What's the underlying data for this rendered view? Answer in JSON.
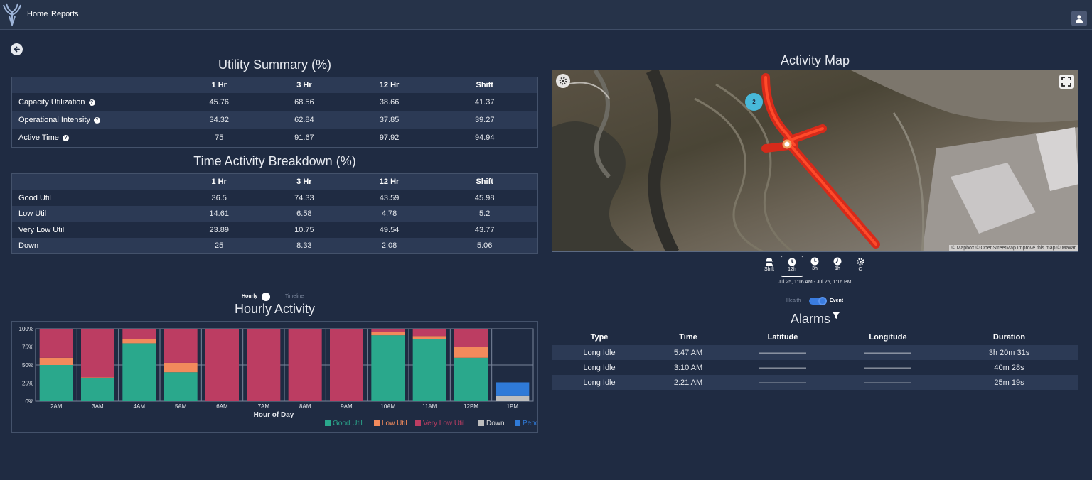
{
  "nav": {
    "home": "Home",
    "reports": "Reports"
  },
  "utility": {
    "title": "Utility Summary (%)",
    "headers": [
      "",
      "1 Hr",
      "3 Hr",
      "12 Hr",
      "Shift"
    ],
    "rows": [
      {
        "label": "Capacity Utilization",
        "values": [
          "45.76",
          "68.56",
          "38.66",
          "41.37"
        ]
      },
      {
        "label": "Operational Intensity",
        "values": [
          "34.32",
          "62.84",
          "37.85",
          "39.27"
        ]
      },
      {
        "label": "Active Time",
        "values": [
          "75",
          "91.67",
          "97.92",
          "94.94"
        ]
      }
    ]
  },
  "breakdown": {
    "title": "Time Activity Breakdown (%)",
    "headers": [
      "",
      "1 Hr",
      "3 Hr",
      "12 Hr",
      "Shift"
    ],
    "rows": [
      {
        "label": "Good Util",
        "values": [
          "36.5",
          "74.33",
          "43.59",
          "45.98"
        ]
      },
      {
        "label": "Low Util",
        "values": [
          "14.61",
          "6.58",
          "4.78",
          "5.2"
        ]
      },
      {
        "label": "Very Low Util",
        "values": [
          "23.89",
          "10.75",
          "49.54",
          "43.77"
        ]
      },
      {
        "label": "Down",
        "values": [
          "25",
          "8.33",
          "2.08",
          "5.06"
        ]
      }
    ]
  },
  "hourly": {
    "toggle_on": "Hourly",
    "toggle_off": "Timeline",
    "title": "Hourly Activity"
  },
  "chart_data": {
    "type": "bar",
    "stacked": true,
    "xlabel": "Hour of Day",
    "ylabel": "",
    "ylim": [
      0,
      100
    ],
    "y_ticks": [
      "0%",
      "25%",
      "50%",
      "75%",
      "100%"
    ],
    "categories": [
      "2AM",
      "3AM",
      "4AM",
      "5AM",
      "6AM",
      "7AM",
      "8AM",
      "9AM",
      "10AM",
      "11AM",
      "12PM",
      "1PM"
    ],
    "series": [
      {
        "name": "Good Util",
        "color": "#2aa88c",
        "values": [
          50,
          32,
          80,
          40,
          0,
          0,
          0,
          0,
          91,
          86,
          60,
          0
        ]
      },
      {
        "name": "Low Util",
        "color": "#f28a5c",
        "values": [
          10,
          1,
          6,
          13,
          0,
          0,
          0,
          0,
          5,
          4,
          15,
          0
        ]
      },
      {
        "name": "Very Low Util",
        "color": "#bc3d62",
        "values": [
          40,
          67,
          14,
          47,
          100,
          100,
          99,
          100,
          4,
          10,
          25,
          0
        ]
      },
      {
        "name": "Down",
        "color": "#bdbdbd",
        "values": [
          0,
          0,
          0,
          0,
          0,
          0,
          1,
          0,
          0,
          0,
          0,
          8
        ]
      },
      {
        "name": "Pending",
        "color": "#2f7ad8",
        "values": [
          0,
          0,
          0,
          0,
          0,
          0,
          0,
          0,
          0,
          0,
          0,
          18
        ]
      }
    ],
    "legend_position": "bottom-right",
    "grid": true
  },
  "map": {
    "title": "Activity Map",
    "cluster_count": "2",
    "attribution": "© Mapbox © OpenStreetMap Improve this map © Maxar",
    "ranges": [
      "Shift",
      "12h",
      "3h",
      "1h",
      "C"
    ],
    "range_text": "Jul 25, 1:16 AM - Jul 25, 1:16 PM"
  },
  "event_toggle": {
    "off": "Health",
    "on": "Event"
  },
  "alarms": {
    "title": "Alarms",
    "headers": [
      "Type",
      "Time",
      "Latitude",
      "Longitude",
      "Duration"
    ],
    "rows": [
      [
        "Long Idle",
        "5:47 AM",
        "——————",
        "——————",
        "3h 20m 31s"
      ],
      [
        "Long Idle",
        "3:10 AM",
        "——————",
        "——————",
        "40m 28s"
      ],
      [
        "Long Idle",
        "2:21 AM",
        "——————",
        "——————",
        "25m 19s"
      ]
    ]
  }
}
